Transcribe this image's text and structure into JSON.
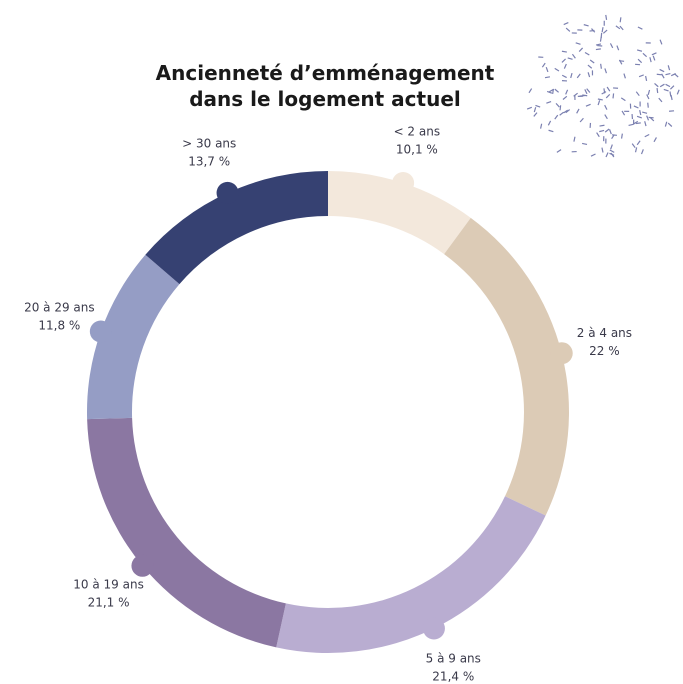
{
  "chart_data": {
    "type": "donut",
    "title": [
      "Ancienneté d’emménagement",
      "dans le logement actuel"
    ],
    "categories": [
      "< 2 ans",
      "2 à 4 ans",
      "5 à 9 ans",
      "10 à 19 ans",
      "20 à 29 ans",
      "> 30 ans"
    ],
    "values": [
      10.1,
      22,
      21.4,
      21.1,
      11.8,
      13.7
    ],
    "value_labels": [
      "10,1 %",
      "22 %",
      "21,4 %",
      "21,1 %",
      "11,8 %",
      "13,7 %"
    ],
    "colors": [
      "#f3e8dc",
      "#dccbb6",
      "#b9add1",
      "#8b77a2",
      "#959dc5",
      "#364172"
    ]
  }
}
